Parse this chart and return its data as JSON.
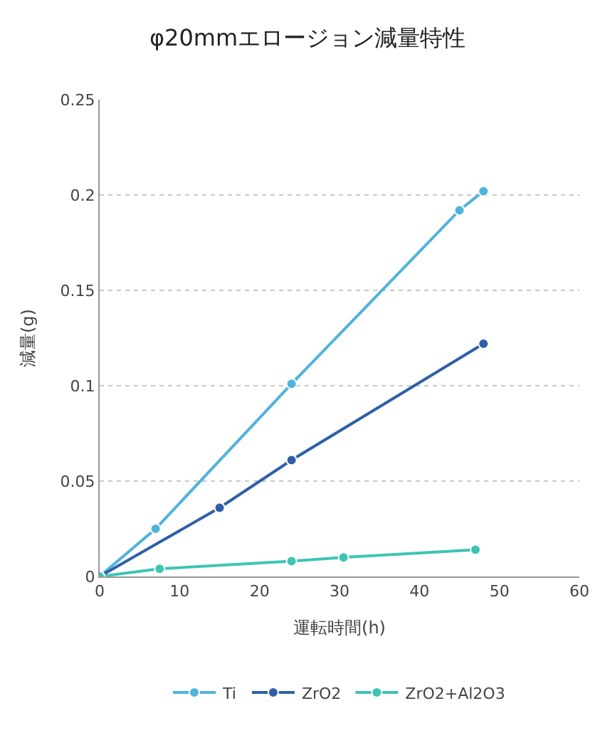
{
  "chart_data": {
    "type": "line",
    "title": "φ20mmエロージョン減量特性",
    "xlabel": "運転時間(h)",
    "ylabel": "減量(g)",
    "xlim": [
      0,
      60
    ],
    "xticks": [
      0,
      10,
      20,
      30,
      40,
      50,
      60
    ],
    "ylim": [
      0,
      0.25
    ],
    "yticks": [
      0,
      0.05,
      0.1,
      0.15,
      0.2,
      0.25
    ],
    "grid": "y",
    "legend": "bottom",
    "marker": "circle",
    "line_style": "solid",
    "series": [
      {
        "name": "Ti",
        "color": "#4fb3dc",
        "x": [
          0,
          7,
          24,
          45,
          48
        ],
        "values": [
          0,
          0.025,
          0.101,
          0.192,
          0.202
        ]
      },
      {
        "name": "ZrO2",
        "color": "#2f5fa8",
        "x": [
          0,
          15,
          24,
          48
        ],
        "values": [
          0,
          0.036,
          0.061,
          0.122
        ]
      },
      {
        "name": "ZrO2+Al2O3",
        "color": "#3ec4b4",
        "x": [
          0,
          7.5,
          24,
          30.5,
          47
        ],
        "values": [
          0,
          0.004,
          0.008,
          0.01,
          0.014
        ]
      }
    ]
  }
}
